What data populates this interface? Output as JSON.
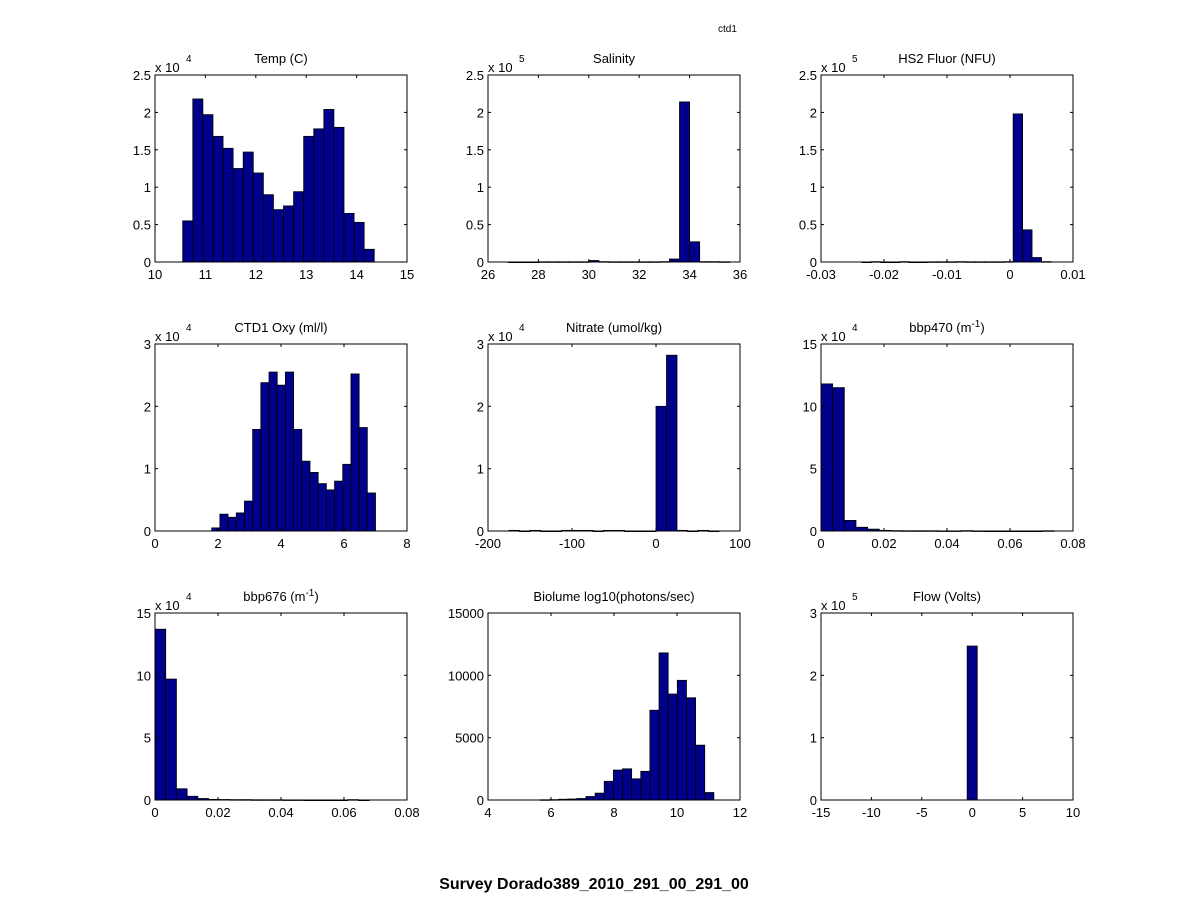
{
  "figure": {
    "title": "Survey Dorado389_2010_291_00_291_00",
    "corner_label": "ctd1",
    "bar_color": "#00008B",
    "edge_color": "#000000"
  },
  "chart_data": [
    {
      "type": "bar",
      "title": "Temp (C)",
      "multiplier": "x 10",
      "exponent": "4",
      "xlim": [
        10,
        15
      ],
      "ylim": [
        0,
        2.5
      ],
      "xticks": [
        "10",
        "11",
        "12",
        "13",
        "14",
        "15"
      ],
      "yticks": [
        "0",
        "0.5",
        "1",
        "1.5",
        "2",
        "2.5"
      ],
      "bin_start": 10.55,
      "bin_width": 0.2,
      "values": [
        0.55,
        2.18,
        1.97,
        1.68,
        1.52,
        1.25,
        1.47,
        1.19,
        0.9,
        0.7,
        0.75,
        0.94,
        1.68,
        1.78,
        2.04,
        1.8,
        0.65,
        0.53,
        0.17
      ]
    },
    {
      "type": "bar",
      "title": "Salinity",
      "multiplier": "x 10",
      "exponent": "5",
      "xlim": [
        26,
        36
      ],
      "ylim": [
        0,
        2.5
      ],
      "xticks": [
        "26",
        "28",
        "30",
        "32",
        "34",
        "36"
      ],
      "yticks": [
        "0",
        "0.5",
        "1",
        "1.5",
        "2",
        "2.5"
      ],
      "bin_start": 26.8,
      "bin_width": 0.4,
      "values": [
        0,
        0,
        0,
        0.003,
        0.003,
        0.003,
        0.003,
        0.003,
        0.02,
        0.005,
        0.003,
        0.003,
        0.003,
        0.003,
        0.003,
        0.005,
        0.04,
        2.14,
        0.27,
        0.005,
        0.005,
        0.003
      ]
    },
    {
      "type": "bar",
      "title": "HS2 Fluor (NFU)",
      "multiplier": "x 10",
      "exponent": "5",
      "xlim": [
        -0.03,
        0.01
      ],
      "ylim": [
        0,
        2.5
      ],
      "xticks": [
        "-0.03",
        "-0.02",
        "-0.01",
        "0",
        "0.01"
      ],
      "yticks": [
        "0",
        "0.5",
        "1",
        "1.5",
        "2",
        "2.5"
      ],
      "bin_start": -0.0235,
      "bin_width": 0.0015,
      "values": [
        0,
        0.005,
        0,
        0,
        0.005,
        0,
        0,
        0.003,
        0.003,
        0.003,
        0.005,
        0.003,
        0.003,
        0.003,
        0.003,
        0.005,
        1.98,
        0.43,
        0.06,
        0.005
      ]
    },
    {
      "type": "bar",
      "title": "CTD1 Oxy (ml/l)",
      "multiplier": "x 10",
      "exponent": "4",
      "xlim": [
        0,
        8
      ],
      "ylim": [
        0,
        3
      ],
      "xticks": [
        "0",
        "2",
        "4",
        "6",
        "8"
      ],
      "yticks": [
        "0",
        "1",
        "2",
        "3"
      ],
      "bin_start": 1.8,
      "bin_width": 0.26,
      "values": [
        0.05,
        0.27,
        0.22,
        0.29,
        0.48,
        1.63,
        2.38,
        2.55,
        2.34,
        2.55,
        1.63,
        1.12,
        0.94,
        0.76,
        0.66,
        0.8,
        1.07,
        2.52,
        1.66,
        0.61
      ]
    },
    {
      "type": "bar",
      "title": "Nitrate (umol/kg)",
      "multiplier": "x 10",
      "exponent": "4",
      "xlim": [
        -200,
        100
      ],
      "ylim": [
        0,
        3
      ],
      "xticks": [
        "-200",
        "-100",
        "0",
        "100"
      ],
      "yticks": [
        "0",
        "1",
        "2",
        "3"
      ],
      "bin_start": -175,
      "bin_width": 12.5,
      "values": [
        0.01,
        0,
        0.01,
        0,
        0,
        0.01,
        0.01,
        0.01,
        0,
        0.01,
        0.01,
        0,
        0,
        0,
        2.0,
        2.82,
        0.01,
        0,
        0.01,
        0
      ]
    },
    {
      "type": "bar",
      "title": "bbp470 (m⁻¹)",
      "multiplier": "x 10",
      "exponent": "4",
      "xlim": [
        0,
        0.08
      ],
      "ylim": [
        0,
        15
      ],
      "xticks": [
        "0",
        "0.02",
        "0.04",
        "0.06",
        "0.08"
      ],
      "yticks": [
        "0",
        "5",
        "10",
        "15"
      ],
      "bin_start": 0,
      "bin_width": 0.0037,
      "values": [
        11.8,
        11.5,
        0.85,
        0.3,
        0.15,
        0.05,
        0.03,
        0.02,
        0.02,
        0.02,
        0.01,
        0.01,
        0.03,
        0.01,
        0,
        0,
        0,
        0,
        0,
        0.02
      ]
    },
    {
      "type": "bar",
      "title": "bbp676 (m⁻¹)",
      "multiplier": "x 10",
      "exponent": "4",
      "xlim": [
        0,
        0.08
      ],
      "ylim": [
        0,
        15
      ],
      "xticks": [
        "0",
        "0.02",
        "0.04",
        "0.06",
        "0.08"
      ],
      "yticks": [
        "0",
        "5",
        "10",
        "15"
      ],
      "bin_start": 0,
      "bin_width": 0.0034,
      "values": [
        13.7,
        9.7,
        0.9,
        0.3,
        0.12,
        0.05,
        0.04,
        0.03,
        0.03,
        0.02,
        0.02,
        0.02,
        0.01,
        0.01,
        0,
        0,
        0,
        0,
        0.03,
        0
      ]
    },
    {
      "type": "bar",
      "title": "Biolume log10(photons/sec)",
      "multiplier": "",
      "exponent": "",
      "xlim": [
        4,
        12
      ],
      "ylim": [
        0,
        15000
      ],
      "xticks": [
        "4",
        "6",
        "8",
        "10",
        "12"
      ],
      "yticks": [
        "0",
        "5000",
        "10000",
        "15000"
      ],
      "bin_start": 5.66,
      "bin_width": 0.29,
      "values": [
        20,
        30,
        60,
        80,
        120,
        280,
        550,
        1500,
        2400,
        2500,
        1700,
        2300,
        7200,
        11800,
        8500,
        9600,
        8200,
        4400,
        600
      ]
    },
    {
      "type": "bar",
      "title": "Flow (Volts)",
      "multiplier": "x 10",
      "exponent": "5",
      "xlim": [
        -15,
        10
      ],
      "ylim": [
        0,
        3
      ],
      "xticks": [
        "-15",
        "-10",
        "-5",
        "0",
        "5",
        "10"
      ],
      "yticks": [
        "0",
        "1",
        "2",
        "3"
      ],
      "bin_start": -0.5,
      "bin_width": 1.0,
      "values": [
        2.47
      ]
    }
  ]
}
